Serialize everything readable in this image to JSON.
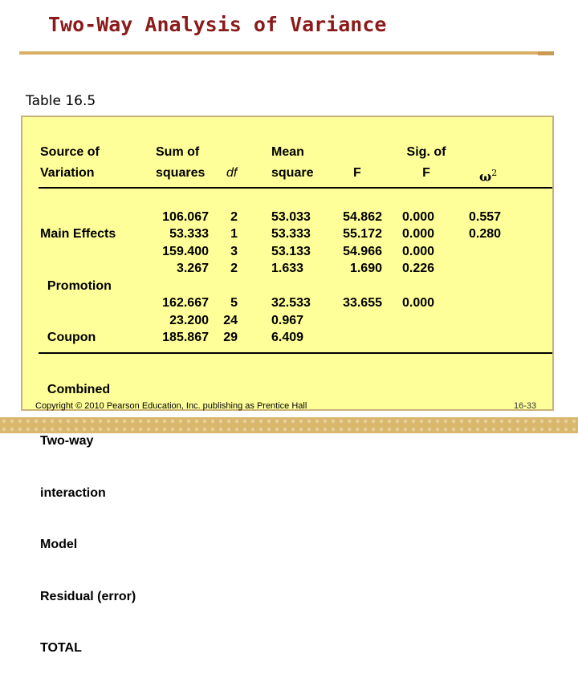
{
  "slide_title": "Two-Way Analysis of Variance",
  "table_caption": "Table 16.5",
  "headers": {
    "source": [
      "Source of",
      "Variation"
    ],
    "sum_sq": [
      "Sum of",
      "squares"
    ],
    "df": "df",
    "mean_sq": [
      "Mean",
      "square"
    ],
    "f": "F",
    "sig": [
      "Sig. of",
      "F"
    ],
    "omega_base": "ω",
    "omega_sup": "2"
  },
  "sources": [
    "Main Effects",
    "  Promotion",
    "  Coupon",
    "  Combined",
    "Two-way",
    "interaction",
    "Model",
    "Residual (error)",
    "TOTAL"
  ],
  "col_sum_sq": {
    "group1": [
      "106.067",
      "53.333",
      "159.400",
      "3.267"
    ],
    "group2": [
      "162.667",
      "23.200",
      "185.867"
    ]
  },
  "col_df": {
    "group1": [
      "2",
      "1",
      "3",
      "2"
    ],
    "group2": [
      "5",
      "24",
      "29"
    ]
  },
  "col_mean_sq": {
    "group1": [
      "53.033",
      "53.333",
      "53.133",
      "1.633"
    ],
    "group2": [
      "32.533",
      "0.967",
      "6.409"
    ]
  },
  "col_f": {
    "group1": [
      "54.862",
      "55.172",
      "54.966",
      "1.690"
    ],
    "group2": [
      "33.655"
    ]
  },
  "col_sig": {
    "group1": [
      "0.000",
      "0.000",
      "0.000",
      "0.226"
    ],
    "group2": [
      "0.000"
    ]
  },
  "col_omega": [
    "0.557",
    "0.280"
  ],
  "footer": {
    "copyright": "Copyright © 2010 Pearson Education, Inc. publishing as Prentice Hall",
    "page": "16-33"
  },
  "colors": {
    "title": "#8b1a1a",
    "panel": "#ffff99",
    "accent": "#d9b86e"
  }
}
